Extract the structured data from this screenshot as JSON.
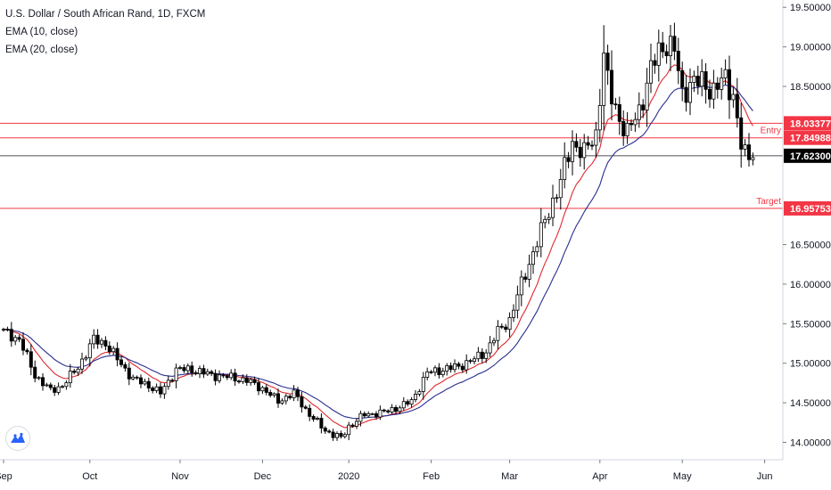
{
  "legend": {
    "symbol": "U.S. Dollar / South African Rand, 1D, FXCM",
    "ema_fast": "EMA (10, close)",
    "ema_slow": "EMA (20, close)"
  },
  "colors": {
    "up": "#ffffff",
    "down": "#000000",
    "candle_border": "#000000",
    "ema_fast": "#e0282e",
    "ema_slow": "#2a2e8f",
    "level_line": "#f23645",
    "price_line": "#131722",
    "grid_axis": "#d1d4dc"
  },
  "logo_icon": "tradingview-logo-icon",
  "chart_data": {
    "type": "candlestick",
    "title": "U.S. Dollar / South African Rand, 1D, FXCM",
    "yaxis": {
      "range": [
        13.78,
        19.57
      ],
      "ticks": [
        "19.50000",
        "19.00000",
        "18.50000",
        "16.50000",
        "16.00000",
        "15.50000",
        "15.00000",
        "14.50000",
        "14.00000"
      ]
    },
    "xaxis": {
      "labels": [
        "Sep",
        "Oct",
        "Nov",
        "Dec",
        "2020",
        "Feb",
        "Mar",
        "Apr",
        "May",
        "Jun"
      ],
      "label_index": [
        0,
        22,
        45,
        66,
        88,
        109,
        129,
        152,
        173,
        194
      ]
    },
    "bars_total": 196,
    "close_anchors": [
      [
        0,
        15.4
      ],
      [
        4,
        15.3
      ],
      [
        8,
        14.85
      ],
      [
        12,
        14.65
      ],
      [
        15,
        14.72
      ],
      [
        19,
        14.95
      ],
      [
        23,
        15.3
      ],
      [
        26,
        15.25
      ],
      [
        29,
        15.05
      ],
      [
        33,
        14.8
      ],
      [
        37,
        14.72
      ],
      [
        40,
        14.62
      ],
      [
        44,
        14.92
      ],
      [
        48,
        14.92
      ],
      [
        53,
        14.85
      ],
      [
        58,
        14.82
      ],
      [
        62,
        14.78
      ],
      [
        66,
        14.68
      ],
      [
        70,
        14.52
      ],
      [
        74,
        14.62
      ],
      [
        78,
        14.35
      ],
      [
        82,
        14.15
      ],
      [
        86,
        14.05
      ],
      [
        88,
        14.2
      ],
      [
        92,
        14.35
      ],
      [
        97,
        14.38
      ],
      [
        101,
        14.45
      ],
      [
        104,
        14.52
      ],
      [
        108,
        14.88
      ],
      [
        112,
        14.92
      ],
      [
        116,
        14.96
      ],
      [
        120,
        15.05
      ],
      [
        123,
        15.15
      ],
      [
        126,
        15.4
      ],
      [
        129,
        15.55
      ],
      [
        132,
        16.0
      ],
      [
        135,
        16.4
      ],
      [
        138,
        16.8
      ],
      [
        142,
        17.3
      ],
      [
        145,
        17.8
      ],
      [
        148,
        17.65
      ],
      [
        151,
        17.9
      ],
      [
        153,
        18.9
      ],
      [
        154,
        18.55
      ],
      [
        155,
        18.35
      ],
      [
        157,
        18.1
      ],
      [
        159,
        17.9
      ],
      [
        162,
        18.2
      ],
      [
        165,
        18.7
      ],
      [
        167,
        18.95
      ],
      [
        169,
        19.05
      ],
      [
        171,
        18.95
      ],
      [
        173,
        18.4
      ],
      [
        175,
        18.55
      ],
      [
        178,
        18.55
      ],
      [
        181,
        18.45
      ],
      [
        184,
        18.6
      ],
      [
        186,
        18.4
      ],
      [
        188,
        17.75
      ],
      [
        189,
        17.62
      ],
      [
        191,
        17.6
      ]
    ],
    "series": [
      {
        "name": "USDZAR",
        "kind": "candles"
      },
      {
        "name": "EMA (10, close)",
        "kind": "line"
      },
      {
        "name": "EMA (20, close)",
        "kind": "line"
      }
    ],
    "levels": [
      {
        "price": 18.03377,
        "label": "18.03377",
        "note": ""
      },
      {
        "price": 17.84988,
        "label": "17.84988",
        "note": "Entry"
      },
      {
        "price": 16.95753,
        "label": "16.95753",
        "note": "Target"
      }
    ],
    "last_price": {
      "price": 17.623,
      "label": "17.62300"
    }
  }
}
